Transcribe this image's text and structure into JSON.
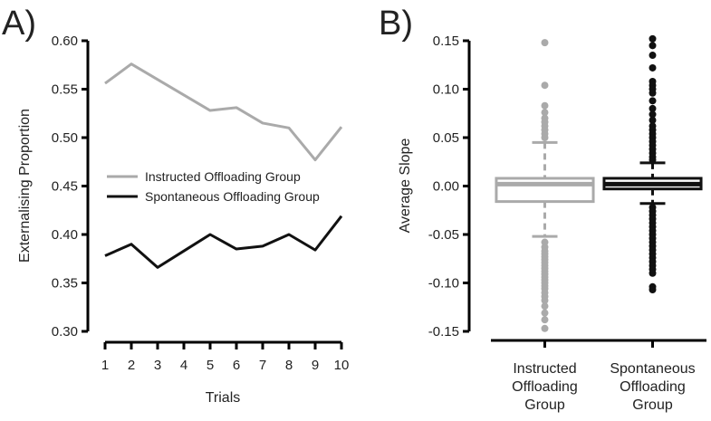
{
  "chart_data": [
    {
      "panel": "A)",
      "type": "line",
      "xlabel": "Trials",
      "ylabel": "Externalising Proportion",
      "x": [
        1,
        2,
        3,
        4,
        5,
        6,
        7,
        8,
        9,
        10
      ],
      "xticks": [
        "1",
        "2",
        "3",
        "4",
        "5",
        "6",
        "7",
        "8",
        "9",
        "10"
      ],
      "ylim": [
        0.3,
        0.6
      ],
      "yticks": [
        "0.30",
        "0.35",
        "0.40",
        "0.45",
        "0.50",
        "0.55",
        "0.60"
      ],
      "series": [
        {
          "name": "Instructed Offloading Group",
          "color": "#aaaaaa",
          "values": [
            0.556,
            0.576,
            0.56,
            0.544,
            0.528,
            0.531,
            0.515,
            0.51,
            0.477,
            0.511
          ]
        },
        {
          "name": "Spontaneous Offloading Group",
          "color": "#111111",
          "values": [
            0.378,
            0.39,
            0.366,
            0.383,
            0.4,
            0.385,
            0.388,
            0.4,
            0.384,
            0.419
          ]
        }
      ]
    },
    {
      "panel": "B)",
      "type": "box",
      "ylabel": "Average Slope",
      "ylim": [
        -0.15,
        0.15
      ],
      "yticks": [
        "-0.15",
        "-0.10",
        "-0.05",
        "0.00",
        "0.05",
        "0.10",
        "0.15"
      ],
      "groups": [
        {
          "label": [
            "Instructed",
            "Offloading",
            "Group"
          ],
          "color": "#aaaaaa",
          "whisker_low": -0.052,
          "q1": -0.016,
          "median": 0.002,
          "q3": 0.008,
          "whisker_high": 0.045,
          "outliers": [
            0.148,
            0.104,
            0.083,
            0.076,
            0.07,
            0.066,
            0.062,
            0.058,
            0.054,
            0.05,
            -0.058,
            -0.063,
            -0.067,
            -0.07,
            -0.073,
            -0.076,
            -0.079,
            -0.082,
            -0.085,
            -0.088,
            -0.091,
            -0.094,
            -0.097,
            -0.1,
            -0.103,
            -0.106,
            -0.11,
            -0.114,
            -0.118,
            -0.124,
            -0.131,
            -0.138,
            -0.147
          ]
        },
        {
          "label": [
            "Spontaneous",
            "Offloading",
            "Group"
          ],
          "color": "#111111",
          "whisker_low": -0.018,
          "q1": -0.003,
          "median": 0.002,
          "q3": 0.008,
          "whisker_high": 0.024,
          "outliers": [
            0.152,
            0.145,
            0.135,
            0.122,
            0.108,
            0.104,
            0.1,
            0.096,
            0.088,
            0.08,
            0.074,
            0.068,
            0.062,
            0.058,
            0.054,
            0.05,
            0.046,
            0.042,
            0.038,
            0.034,
            0.03,
            0.027,
            -0.022,
            -0.026,
            -0.03,
            -0.034,
            -0.038,
            -0.042,
            -0.046,
            -0.05,
            -0.054,
            -0.058,
            -0.062,
            -0.066,
            -0.07,
            -0.074,
            -0.078,
            -0.082,
            -0.086,
            -0.09,
            -0.104,
            -0.107
          ]
        }
      ]
    }
  ]
}
